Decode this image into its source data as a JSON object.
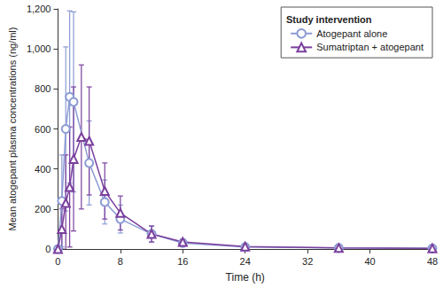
{
  "chart_data": {
    "type": "line",
    "x_label": "Time (h)",
    "y_label": "Mean atogepant plasma concentrations (ng/ml)",
    "legend_title": "Study intervention",
    "legend": "upper right",
    "grid": false,
    "xlim": [
      0,
      48
    ],
    "xticks": [
      0,
      8,
      16,
      24,
      32,
      40,
      48
    ],
    "ylim": [
      0,
      1200
    ],
    "yticks": [
      0,
      200,
      400,
      600,
      800,
      1000,
      1200
    ],
    "series": [
      {
        "name": "Atogepant alone",
        "color": "#8c9bd4",
        "marker": "circle",
        "x": [
          0,
          0.5,
          1,
          1.5,
          2,
          4,
          6,
          8,
          12,
          16,
          24,
          36,
          48
        ],
        "values": [
          0,
          240,
          600,
          760,
          735,
          430,
          235,
          150,
          75,
          30,
          10,
          5,
          3
        ],
        "errors": [
          0,
          230,
          410,
          430,
          450,
          210,
          110,
          70,
          40,
          15,
          8,
          3,
          2
        ]
      },
      {
        "name": "Sumatriptan + atogepant",
        "color": "#7a3f9d",
        "marker": "triangle",
        "x": [
          0,
          0.5,
          1,
          1.5,
          2,
          3,
          4,
          6,
          8,
          12,
          16,
          24,
          36,
          48
        ],
        "values": [
          0,
          100,
          230,
          310,
          450,
          560,
          540,
          290,
          180,
          75,
          35,
          12,
          5,
          3
        ],
        "errors": [
          0,
          100,
          240,
          300,
          360,
          360,
          270,
          140,
          85,
          40,
          15,
          8,
          3,
          2
        ]
      }
    ]
  }
}
